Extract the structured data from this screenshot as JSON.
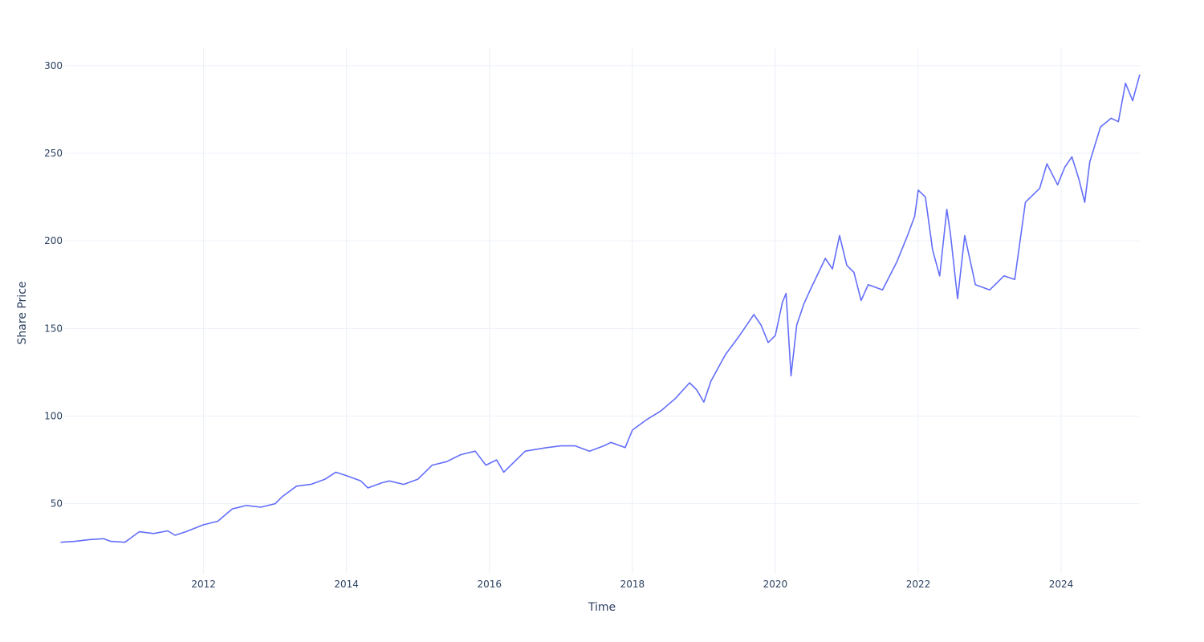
{
  "chart_data": {
    "type": "line",
    "title": "",
    "xlabel": "Time",
    "ylabel": "Share Price",
    "xlim": [
      2010.05,
      2025.1
    ],
    "ylim": [
      10,
      310
    ],
    "grid": true,
    "x_ticks": [
      2012,
      2014,
      2016,
      2018,
      2020,
      2022,
      2024
    ],
    "x_tick_labels": [
      "2012",
      "2014",
      "2016",
      "2018",
      "2020",
      "2022",
      "2024"
    ],
    "y_ticks": [
      50,
      100,
      150,
      200,
      250,
      300
    ],
    "y_tick_labels": [
      "50",
      "100",
      "150",
      "200",
      "250",
      "300"
    ],
    "series": [
      {
        "color": "#636efa",
        "x": [
          2010.0,
          2010.2,
          2010.4,
          2010.6,
          2010.7,
          2010.9,
          2011.0,
          2011.1,
          2011.3,
          2011.5,
          2011.6,
          2011.75,
          2012.0,
          2012.2,
          2012.4,
          2012.6,
          2012.8,
          2013.0,
          2013.1,
          2013.3,
          2013.5,
          2013.7,
          2013.85,
          2014.0,
          2014.2,
          2014.3,
          2014.5,
          2014.6,
          2014.8,
          2015.0,
          2015.2,
          2015.4,
          2015.6,
          2015.8,
          2015.95,
          2016.1,
          2016.2,
          2016.4,
          2016.5,
          2016.8,
          2017.0,
          2017.2,
          2017.4,
          2017.6,
          2017.7,
          2017.9,
          2018.0,
          2018.2,
          2018.4,
          2018.6,
          2018.8,
          2018.9,
          2019.0,
          2019.1,
          2019.3,
          2019.5,
          2019.7,
          2019.8,
          2019.9,
          2020.0,
          2020.1,
          2020.15,
          2020.22,
          2020.3,
          2020.4,
          2020.5,
          2020.7,
          2020.8,
          2020.9,
          2021.0,
          2021.1,
          2021.2,
          2021.3,
          2021.5,
          2021.7,
          2021.85,
          2021.95,
          2022.0,
          2022.1,
          2022.2,
          2022.3,
          2022.4,
          2022.45,
          2022.55,
          2022.65,
          2022.8,
          2023.0,
          2023.2,
          2023.35,
          2023.5,
          2023.7,
          2023.8,
          2023.95,
          2024.05,
          2024.15,
          2024.25,
          2024.33,
          2024.4,
          2024.55,
          2024.7,
          2024.8,
          2024.9,
          2025.0,
          2025.1
        ],
        "y": [
          28,
          28.5,
          29.5,
          30,
          28.5,
          28,
          31,
          34,
          33,
          34.5,
          32,
          34,
          38,
          40,
          47,
          49,
          48,
          50,
          54,
          60,
          61,
          64,
          68,
          66,
          63,
          59,
          62,
          63,
          61,
          64,
          72,
          74,
          78,
          80,
          72,
          75,
          68,
          76,
          80,
          82,
          83,
          83,
          80,
          83,
          85,
          82,
          92,
          98,
          103,
          110,
          119,
          115,
          108,
          120,
          135,
          146,
          158,
          152,
          142,
          146,
          165,
          170,
          123,
          152,
          164,
          173,
          190,
          184,
          203,
          186,
          182,
          166,
          175,
          172,
          188,
          203,
          214,
          229,
          225,
          195,
          180,
          218,
          204,
          167,
          203,
          175,
          172,
          180,
          178,
          222,
          230,
          244,
          232,
          242,
          248,
          235,
          222,
          245,
          265,
          270,
          268,
          290,
          280,
          295
        ]
      }
    ]
  }
}
